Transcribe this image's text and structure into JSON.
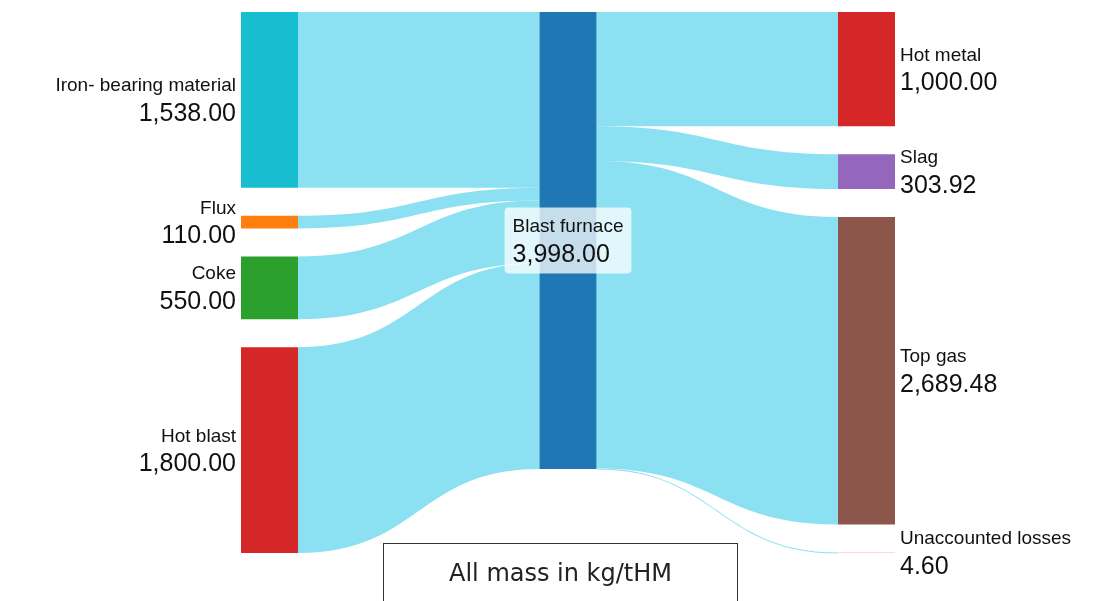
{
  "chart_data": {
    "type": "other",
    "annotations": [
      "All mass in kg/tHM"
    ],
    "categories": [
      "Iron- bearing material",
      "Flux",
      "Coke",
      "Hot blast",
      "Blast furnace",
      "Hot metal",
      "Slag",
      "Top gas",
      "Unaccounted losses"
    ],
    "colors": [
      "#17becf",
      "#ff7f0e",
      "#2ca02c",
      "#d62728",
      "#1f77b4",
      "#d62728",
      "#9467bd",
      "#8c564b",
      "#f7b6d2"
    ],
    "series": [
      {
        "values": [
          1538,
          110,
          550,
          1800,
          null,
          null,
          null,
          null,
          null
        ],
        "value_labels": [
          "1,538.00",
          "110.00",
          "550.00",
          "1,800.00",
          null,
          null,
          null,
          null,
          null
        ]
      },
      {
        "values": [
          null,
          null,
          null,
          null,
          3998,
          null,
          null,
          null,
          null
        ],
        "value_labels": [
          null,
          null,
          null,
          null,
          "3,998.00",
          null,
          null,
          null,
          null
        ]
      },
      {
        "values": [
          null,
          null,
          null,
          null,
          null,
          1000,
          303.92,
          2689.48,
          4.6
        ],
        "value_labels": [
          null,
          null,
          null,
          null,
          null,
          "1,000.00",
          "303.92",
          "2,689.48",
          "4.60"
        ]
      }
    ]
  }
}
